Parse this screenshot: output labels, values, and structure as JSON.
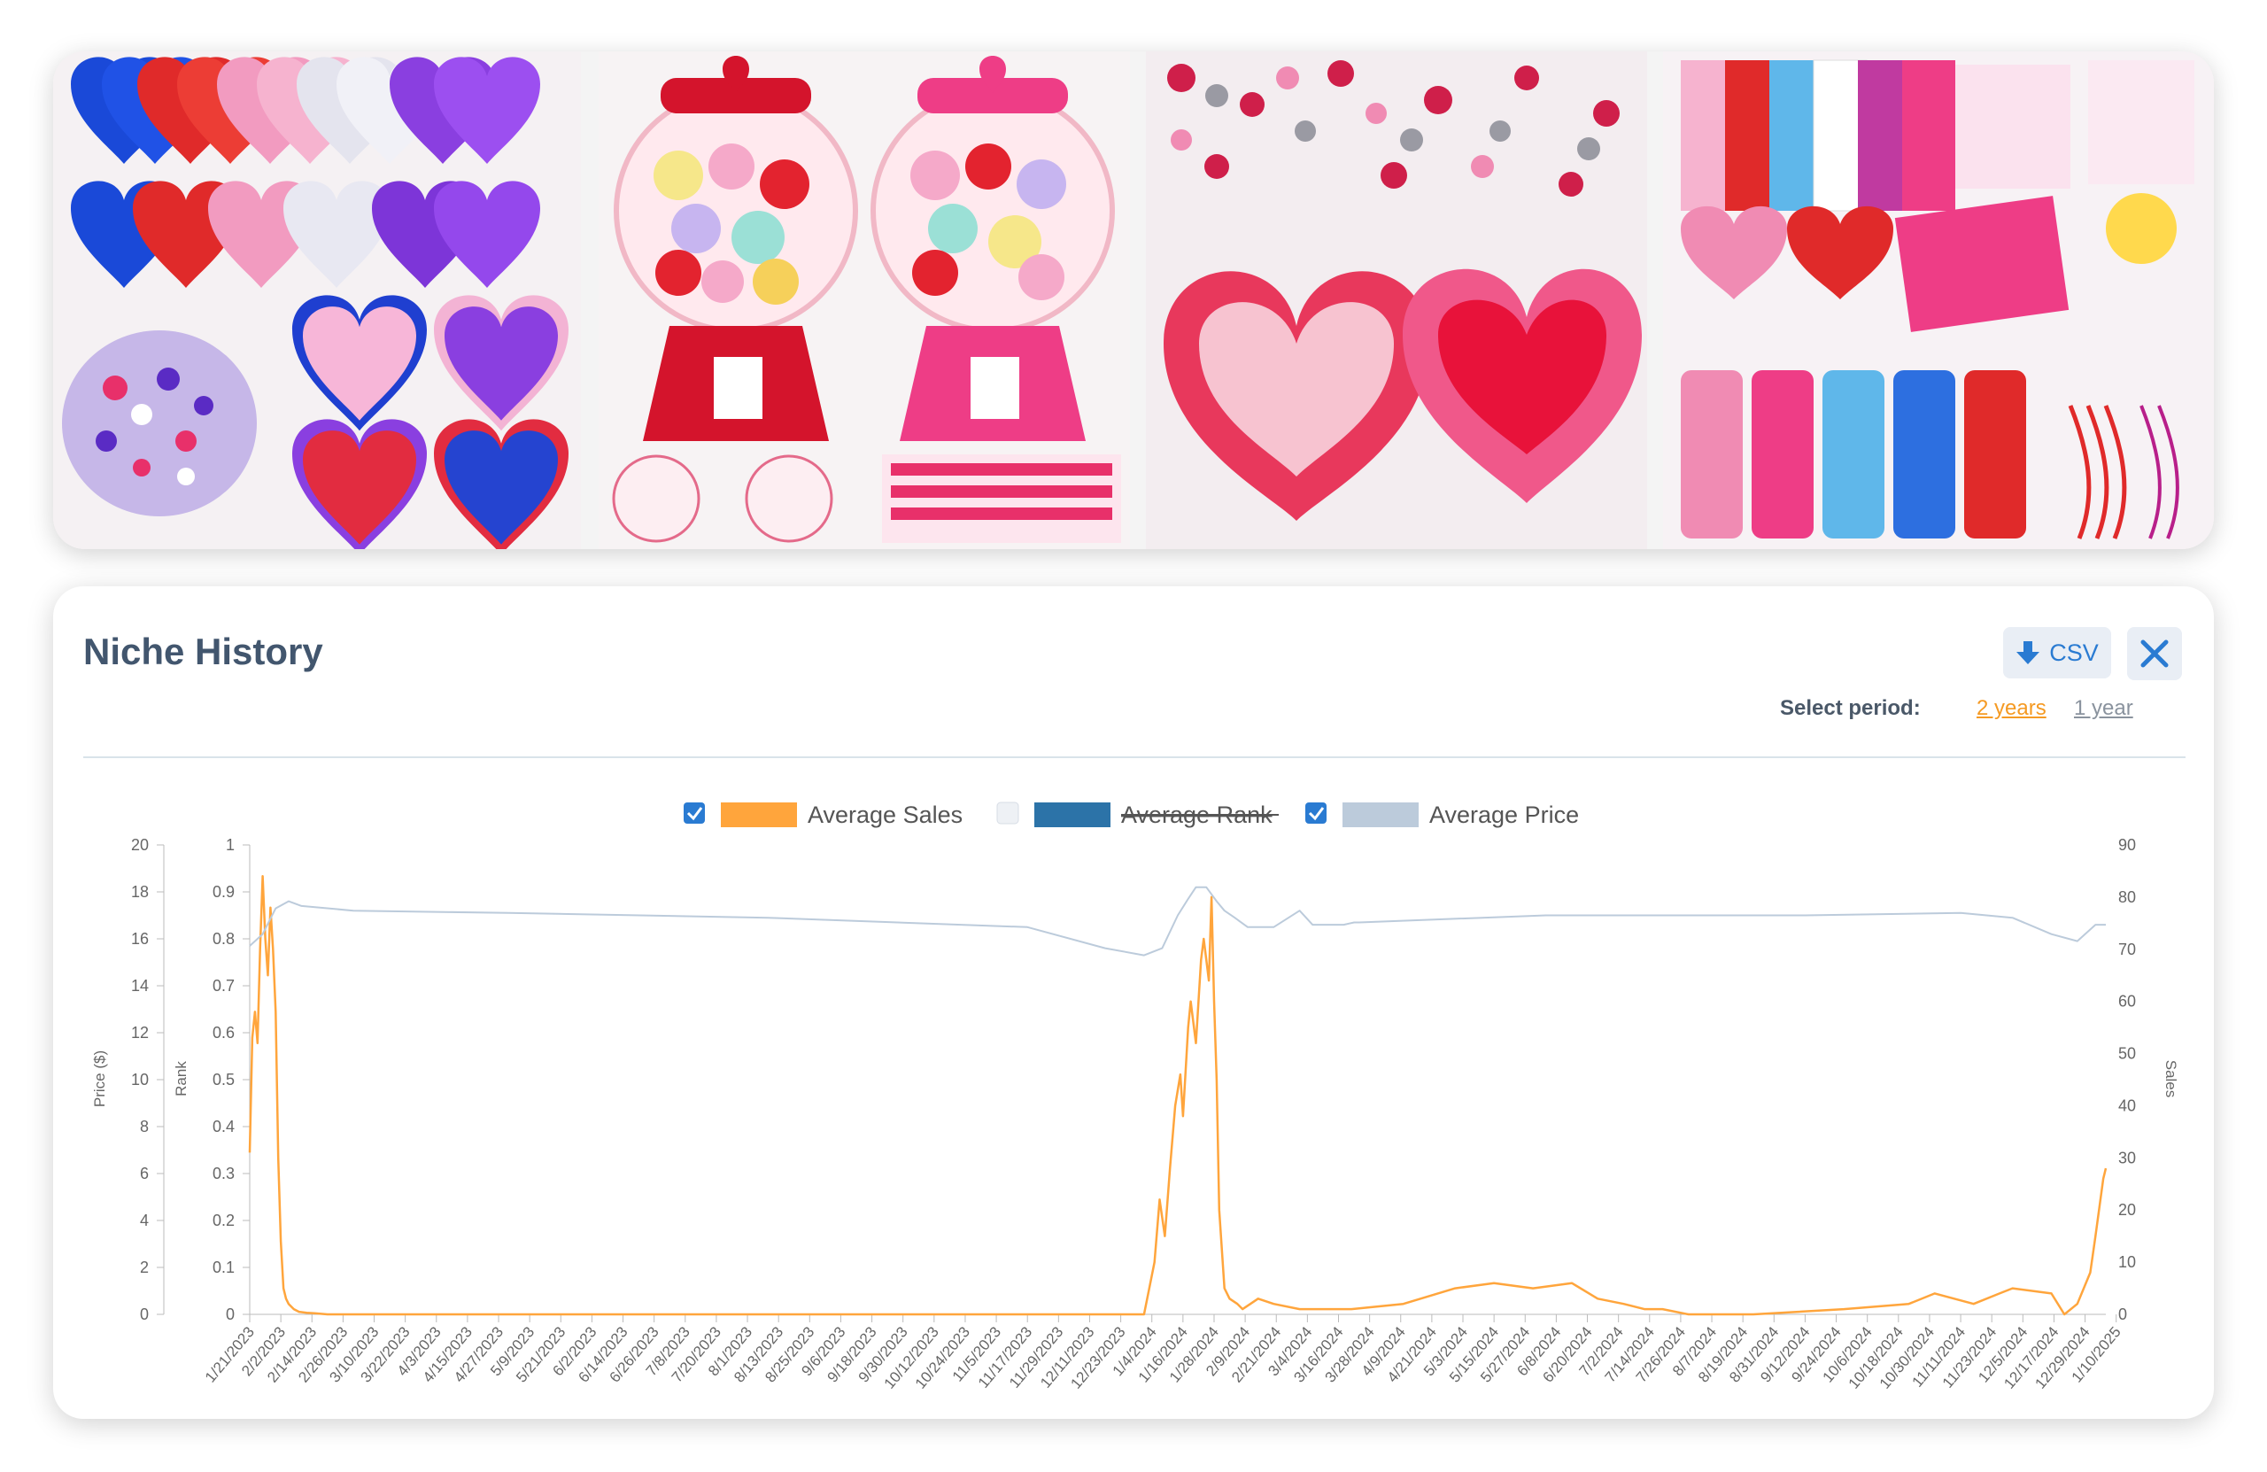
{
  "panel": {
    "title": "Niche History",
    "csv_label": "CSV",
    "select_period_label": "Select period:",
    "period_options": [
      "2 years",
      "1 year"
    ],
    "active_period": "2 years"
  },
  "colors": {
    "sales": "#ffa53c",
    "rank": "#2c73a8",
    "price": "#bccbdb",
    "accent": "#2a7bd2",
    "title": "#42566e"
  },
  "icons": {
    "csv": "download-arrow-icon",
    "close": "close-x-icon"
  },
  "chart_data": {
    "type": "line",
    "legend": [
      {
        "name": "Average Sales",
        "checked": true,
        "strikethrough": false
      },
      {
        "name": "Average Rank",
        "checked": false,
        "strikethrough": true
      },
      {
        "name": "Average Price",
        "checked": true,
        "strikethrough": false
      }
    ],
    "legend_position": "top-center",
    "axes": {
      "price": {
        "label": "Price ($)",
        "min": 0,
        "max": 20,
        "ticks": [
          0,
          2,
          4,
          6,
          8,
          10,
          12,
          14,
          16,
          18,
          20
        ],
        "side": "left"
      },
      "rank": {
        "label": "Rank",
        "min": 0,
        "max": 1,
        "ticks": [
          "0",
          "0.1",
          "0.2",
          "0.3",
          "0.4",
          "0.5",
          "0.6",
          "0.7",
          "0.8",
          "0.9",
          "1"
        ],
        "side": "left"
      },
      "sales": {
        "label": "Sales",
        "min": 0,
        "max": 90,
        "ticks": [
          0,
          10,
          20,
          30,
          40,
          50,
          60,
          70,
          80,
          90
        ],
        "side": "right"
      }
    },
    "x_ticks": [
      "1/21/2023",
      "2/2/2023",
      "2/14/2023",
      "2/26/2023",
      "3/10/2023",
      "3/22/2023",
      "4/3/2023",
      "4/15/2023",
      "4/27/2023",
      "5/9/2023",
      "5/21/2023",
      "6/2/2023",
      "6/14/2023",
      "6/26/2023",
      "7/8/2023",
      "7/20/2023",
      "8/1/2023",
      "8/13/2023",
      "8/25/2023",
      "9/6/2023",
      "9/18/2023",
      "9/30/2023",
      "10/12/2023",
      "10/24/2023",
      "11/5/2023",
      "11/17/2023",
      "11/29/2023",
      "12/11/2023",
      "12/23/2023",
      "1/4/2024",
      "1/16/2024",
      "1/28/2024",
      "2/9/2024",
      "2/21/2024",
      "3/4/2024",
      "3/16/2024",
      "3/28/2024",
      "4/9/2024",
      "4/21/2024",
      "5/3/2024",
      "5/15/2024",
      "5/27/2024",
      "6/8/2024",
      "6/20/2024",
      "7/2/2024",
      "7/14/2024",
      "7/26/2024",
      "8/7/2024",
      "8/19/2024",
      "8/31/2024",
      "9/12/2024",
      "9/24/2024",
      "10/6/2024",
      "10/18/2024",
      "10/30/2024",
      "11/11/2024",
      "11/23/2024",
      "12/5/2024",
      "12/17/2024",
      "12/29/2024",
      "1/10/2025"
    ],
    "series": [
      {
        "name": "Average Sales",
        "axis": "sales",
        "x": [
          0,
          1,
          2,
          3,
          4,
          5,
          6,
          7,
          8,
          9,
          10,
          11,
          12,
          13,
          14,
          15,
          17,
          19,
          22,
          25,
          30,
          36,
          60,
          120,
          200,
          300,
          345,
          347,
          349,
          351,
          353,
          355,
          357,
          359,
          360,
          362,
          363,
          365,
          367,
          368,
          370,
          371,
          372,
          373,
          374,
          376,
          378,
          381,
          383,
          386,
          389,
          395,
          405,
          425,
          445,
          465,
          480,
          495,
          510,
          520,
          530,
          538,
          545,
          555,
          580,
          615,
          640,
          650,
          665,
          675,
          680,
          695,
          700,
          705,
          710,
          712,
          715,
          716
        ],
        "values": [
          31,
          53,
          58,
          52,
          70,
          84,
          72,
          65,
          78,
          70,
          58,
          30,
          14,
          5,
          3,
          2,
          1,
          0.5,
          0.3,
          0.2,
          0,
          0,
          0,
          0,
          0,
          0,
          0,
          5,
          10,
          22,
          15,
          28,
          40,
          46,
          38,
          55,
          60,
          52,
          68,
          72,
          64,
          80,
          60,
          45,
          20,
          5,
          3,
          2,
          1,
          2,
          3,
          2,
          1,
          1,
          2,
          5,
          6,
          5,
          6,
          3,
          2,
          1,
          1,
          0,
          0,
          1,
          2,
          4,
          2,
          4,
          5,
          4,
          0,
          2,
          8,
          15,
          26,
          28
        ]
      },
      {
        "name": "Average Price",
        "axis": "price",
        "x": [
          0,
          5,
          10,
          15,
          20,
          40,
          100,
          200,
          300,
          330,
          345,
          352,
          358,
          362,
          365,
          369,
          373,
          376,
          380,
          385,
          395,
          405,
          410,
          422,
          426,
          428,
          500,
          600,
          660,
          680,
          695,
          705,
          712,
          716
        ],
        "values": [
          15.7,
          16.2,
          17.3,
          17.6,
          17.4,
          17.2,
          17.1,
          16.9,
          16.5,
          15.6,
          15.3,
          15.6,
          17,
          17.7,
          18.2,
          18.2,
          17.6,
          17.2,
          16.9,
          16.5,
          16.5,
          17.2,
          16.6,
          16.6,
          16.7,
          16.7,
          17,
          17,
          17.1,
          16.9,
          16.2,
          15.9,
          16.6,
          16.6
        ]
      }
    ],
    "x_total_days": 716
  }
}
